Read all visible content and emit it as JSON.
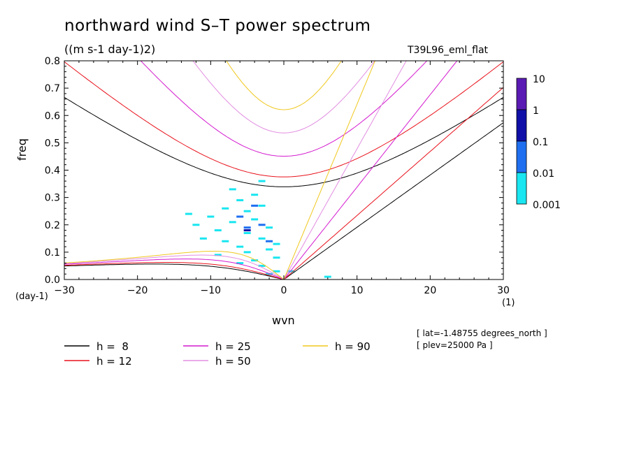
{
  "title": "northward wind S–T power spectrum",
  "subtitle": "((m s-1 day-1)2)",
  "run_name": "T39L96_eml_flat",
  "info_lines": [
    "[ lat=-1.48755 degrees_north ]",
    "[ plev=25000 Pa ]"
  ],
  "chart_data": {
    "type": "heatmap",
    "xlabel": "wvn",
    "ylabel": "freq",
    "x_unit": "(1)",
    "y_unit": "(day-1)",
    "xlim": [
      -30,
      30
    ],
    "ylim": [
      0,
      0.8
    ],
    "x_ticks": [
      -30,
      -20,
      -10,
      0,
      10,
      20,
      30
    ],
    "x_tick_labels": [
      "−30",
      "−20",
      "−10",
      "0",
      "10",
      "20",
      "30"
    ],
    "y_ticks": [
      0.0,
      0.1,
      0.2,
      0.3,
      0.4,
      0.5,
      0.6,
      0.7,
      0.8
    ],
    "y_tick_labels": [
      "0.0",
      "0.1",
      "0.2",
      "0.3",
      "0.4",
      "0.5",
      "0.6",
      "0.7",
      "0.8"
    ],
    "colorbar": {
      "labels": [
        "10",
        "1",
        "0.1",
        "0.01",
        "0.001"
      ],
      "colors": [
        "#5a1bb4",
        "#1010a8",
        "#1f6ff0",
        "#19e6f0"
      ]
    },
    "heatmap_cells": [
      {
        "x": -2,
        "y": 0.02,
        "level": 0
      },
      {
        "x": -1,
        "y": 0.03,
        "level": 0
      },
      {
        "x": -3,
        "y": 0.05,
        "level": 0
      },
      {
        "x": -4,
        "y": 0.07,
        "level": 0
      },
      {
        "x": -1,
        "y": 0.08,
        "level": 0
      },
      {
        "x": -5,
        "y": 0.1,
        "level": 0
      },
      {
        "x": -2,
        "y": 0.11,
        "level": 0
      },
      {
        "x": -6,
        "y": 0.12,
        "level": 0
      },
      {
        "x": -8,
        "y": 0.14,
        "level": 0
      },
      {
        "x": -3,
        "y": 0.15,
        "level": 0
      },
      {
        "x": -5,
        "y": 0.17,
        "level": 0
      },
      {
        "x": -9,
        "y": 0.18,
        "level": 0
      },
      {
        "x": -2,
        "y": 0.19,
        "level": 0
      },
      {
        "x": -7,
        "y": 0.21,
        "level": 0
      },
      {
        "x": -4,
        "y": 0.22,
        "level": 0
      },
      {
        "x": -10,
        "y": 0.23,
        "level": 0
      },
      {
        "x": -5,
        "y": 0.25,
        "level": 0
      },
      {
        "x": -8,
        "y": 0.26,
        "level": 0
      },
      {
        "x": -3,
        "y": 0.27,
        "level": 0
      },
      {
        "x": -6,
        "y": 0.29,
        "level": 0
      },
      {
        "x": -4,
        "y": 0.31,
        "level": 0
      },
      {
        "x": -7,
        "y": 0.33,
        "level": 0
      },
      {
        "x": -12,
        "y": 0.2,
        "level": 0
      },
      {
        "x": -13,
        "y": 0.24,
        "level": 0
      },
      {
        "x": -1,
        "y": 0.13,
        "level": 0
      },
      {
        "x": 1,
        "y": 0.03,
        "level": 0
      },
      {
        "x": -6,
        "y": 0.06,
        "level": 0
      },
      {
        "x": -9,
        "y": 0.09,
        "level": 0
      },
      {
        "x": -11,
        "y": 0.15,
        "level": 0
      },
      {
        "x": -3,
        "y": 0.36,
        "level": 0
      },
      {
        "x": 6,
        "y": 0.01,
        "level": 0
      },
      {
        "x": -5,
        "y": 0.19,
        "level": 1
      },
      {
        "x": -3,
        "y": 0.2,
        "level": 1
      },
      {
        "x": -4,
        "y": 0.27,
        "level": 1
      },
      {
        "x": -6,
        "y": 0.23,
        "level": 1
      },
      {
        "x": -2,
        "y": 0.14,
        "level": 1
      },
      {
        "x": -5,
        "y": 0.18,
        "level": 2
      }
    ],
    "series": [
      {
        "name": "h =  8",
        "color": "#000000",
        "h": 8
      },
      {
        "name": "h = 12",
        "color": "#e8101a",
        "h": 12
      },
      {
        "name": "h = 25",
        "color": "#d41ad0",
        "h": 25
      },
      {
        "name": "h = 50",
        "color": "#e28ee2",
        "h": 50
      },
      {
        "name": "h = 90",
        "color": "#f0c81e",
        "h": 90
      }
    ]
  }
}
